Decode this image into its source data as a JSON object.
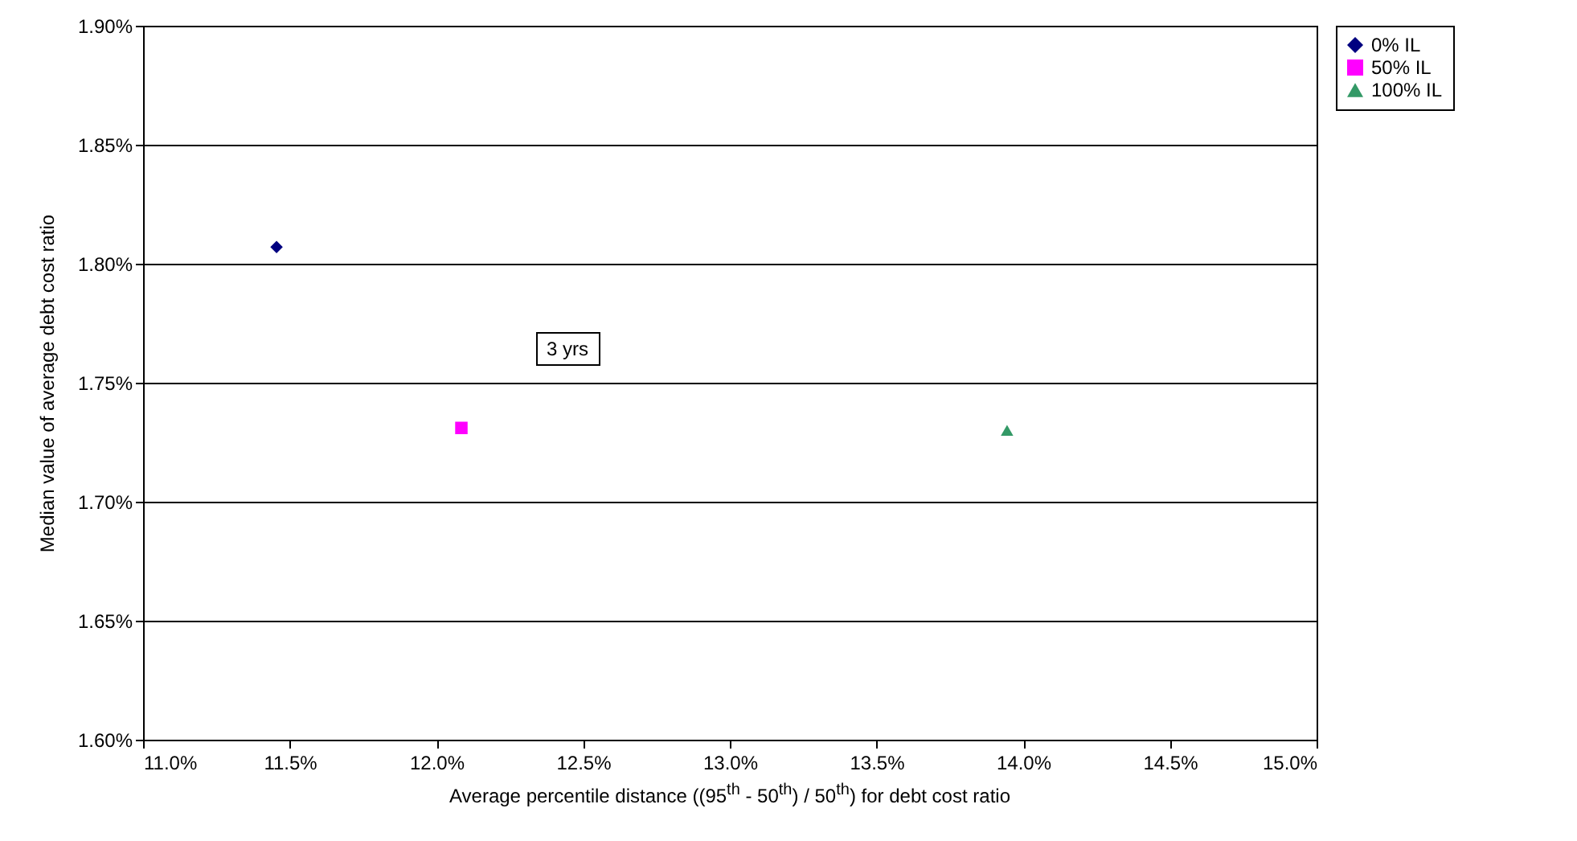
{
  "chart_data": {
    "type": "scatter",
    "xlabel": "Average percentile distance ((95$^{th}$ - 50$^{th}$) / 50$^{th}$) for debt cost ratio",
    "ylabel": "Median value of average debt cost ratio",
    "annotations": [
      "3 yrs"
    ],
    "series": [
      {
        "name": "0% IL",
        "color": "#000080",
        "marker": "diamond",
        "x": [
          11.455
        ],
        "values": [
          1.807
        ]
      },
      {
        "name": "50% IL",
        "color": "#ff00ff",
        "marker": "square",
        "x": [
          12.085
        ],
        "values": [
          1.731
        ]
      },
      {
        "name": "100% IL",
        "color": "#339966",
        "marker": "triangle",
        "x": [
          13.945
        ],
        "values": [
          1.73
        ]
      }
    ],
    "xlim": [
      11.0,
      15.0
    ],
    "xticks": [
      {
        "value": 11.0,
        "label": "11.0%"
      },
      {
        "value": 11.5,
        "label": "11.5%"
      },
      {
        "value": 12.0,
        "label": "12.0%"
      },
      {
        "value": 12.5,
        "label": "12.5%"
      },
      {
        "value": 13.0,
        "label": "13.0%"
      },
      {
        "value": 13.5,
        "label": "13.5%"
      },
      {
        "value": 14.0,
        "label": "14.0%"
      },
      {
        "value": 14.5,
        "label": "14.5%"
      },
      {
        "value": 15.0,
        "label": "15.0%"
      }
    ],
    "ylim": [
      1.6,
      1.9
    ],
    "yticks": [
      {
        "value": 1.6,
        "label": "1.60%"
      },
      {
        "value": 1.65,
        "label": "1.65%"
      },
      {
        "value": 1.7,
        "label": "1.70%"
      },
      {
        "value": 1.75,
        "label": "1.75%"
      },
      {
        "value": 1.8,
        "label": "1.80%"
      },
      {
        "value": 1.85,
        "label": "1.85%"
      },
      {
        "value": 1.9,
        "label": "1.90%"
      }
    ],
    "grid": "y",
    "legend": "right"
  }
}
